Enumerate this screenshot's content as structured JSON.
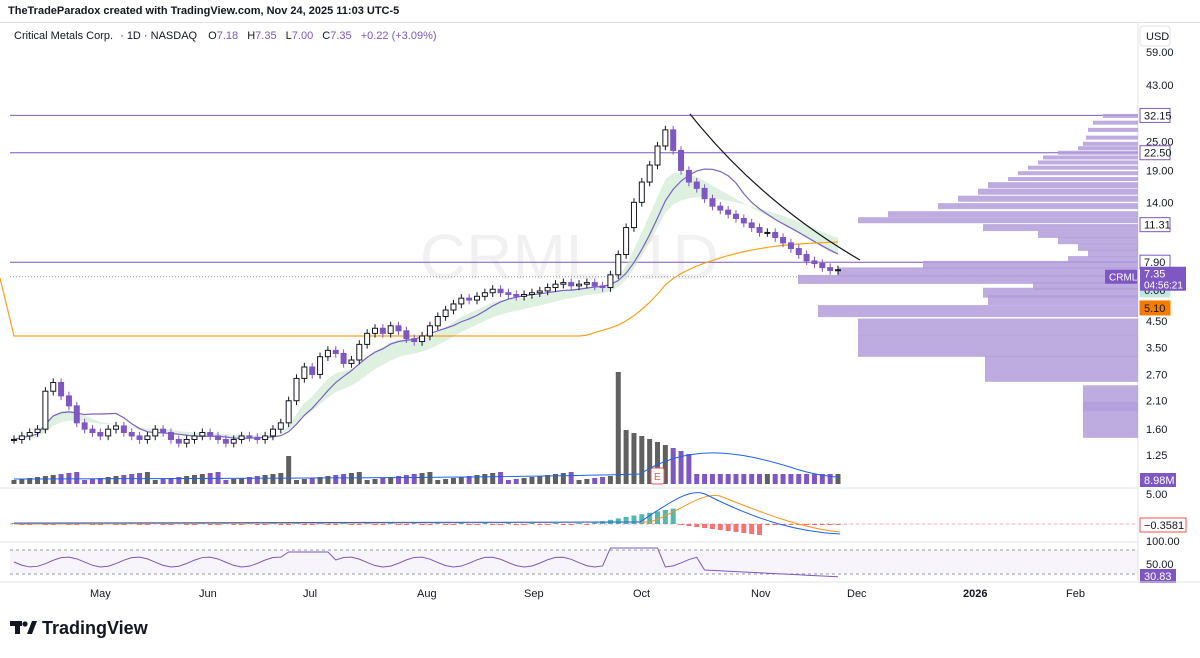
{
  "header": {
    "credit": "TheTradeParadox created with TradingView.com, Nov 24, 2025 11:03 UTC-5"
  },
  "legend": {
    "symbol_name": "Critical Metals Corp.",
    "interval": "· 1D · NASDAQ",
    "open_label": "O",
    "open": "7.18",
    "high_label": "H",
    "high": "7.35",
    "low_label": "L",
    "low": "7.00",
    "close_label": "C",
    "close": "7.35",
    "change": "+0.22 (+3.09%)"
  },
  "watermark": "CRML, 1D",
  "currency": "USD",
  "brand": "TradingView",
  "colors": {
    "up": "#131722",
    "down": "#7e57c2",
    "sma_long": "#f7a21b",
    "sma_mid": "#7a61c2",
    "band_up": "#c8e6c9",
    "band_down": "#f8c6c6",
    "profile": "#b39ddb",
    "macd_signal": "#f7941d",
    "macd_line": "#1e63e9",
    "rsi": "#7e57c2",
    "highlight_6_06": "#c5e6df",
    "highlight_5_10": "#f57c00"
  },
  "chart_data": [
    {
      "type": "candlestick",
      "title": "Critical Metals Corp. · 1D · NASDAQ",
      "y_scale": "log",
      "y_ticks": [
        "59.00",
        "43.00",
        "25.00",
        "19.00",
        "14.00",
        "7.90",
        "4.50",
        "3.50",
        "2.70",
        "2.10",
        "1.60",
        "1.25"
      ],
      "x_ticks": [
        "May",
        "Jun",
        "Jul",
        "Aug",
        "Sep",
        "Oct",
        "Nov",
        "Dec",
        "2026",
        "Feb"
      ],
      "price_labels": [
        {
          "label": "32.15",
          "value": 32.15
        },
        {
          "label": "22.50",
          "value": 22.5
        },
        {
          "label": "11.31",
          "value": 11.31
        },
        {
          "label": "7.90",
          "value": 7.9
        },
        {
          "label": "7.35",
          "value": 7.35
        },
        {
          "label": "6.06",
          "value": 6.06
        },
        {
          "label": "5.10",
          "value": 5.1
        }
      ],
      "last_price_label": {
        "symbol": "CRML",
        "price": "7.35",
        "countdown": "04:56:21"
      },
      "horizontal_lines": [
        32.15,
        22.5,
        7.9
      ],
      "candles_close_approx": [
        1.45,
        1.5,
        1.55,
        1.6,
        2.3,
        2.5,
        2.2,
        2.0,
        1.7,
        1.6,
        1.55,
        1.5,
        1.6,
        1.65,
        1.55,
        1.5,
        1.45,
        1.5,
        1.6,
        1.55,
        1.45,
        1.4,
        1.45,
        1.5,
        1.55,
        1.5,
        1.45,
        1.4,
        1.45,
        1.5,
        1.48,
        1.45,
        1.5,
        1.6,
        1.7,
        2.1,
        2.6,
        2.9,
        2.7,
        3.2,
        3.4,
        3.3,
        3.0,
        3.1,
        3.6,
        4.0,
        4.2,
        4.0,
        4.3,
        4.1,
        3.8,
        3.7,
        3.9,
        4.3,
        4.7,
        5.0,
        5.3,
        5.6,
        5.5,
        5.7,
        5.9,
        6.1,
        5.9,
        5.8,
        5.7,
        5.8,
        5.9,
        6.0,
        6.2,
        6.4,
        6.5,
        6.3,
        6.4,
        6.5,
        6.3,
        6.2,
        7.0,
        8.5,
        11.0,
        14.0,
        17.0,
        20.0,
        24.0,
        28.0,
        23.0,
        19.0,
        17.0,
        16.0,
        14.5,
        13.5,
        13.0,
        12.5,
        12.0,
        11.5,
        11.0,
        10.5,
        10.5,
        10.0,
        9.5,
        9.0,
        8.5,
        8.0,
        7.8,
        7.5,
        7.3,
        7.35
      ],
      "volume_label": "8.98M"
    },
    {
      "type": "bar",
      "title": "MACD",
      "y_ticks": [
        "5.00"
      ],
      "current_value": "−0.3581"
    },
    {
      "type": "line",
      "title": "RSI",
      "y_ticks": [
        "100.00",
        "50.00"
      ],
      "current_value": "30.83"
    }
  ]
}
